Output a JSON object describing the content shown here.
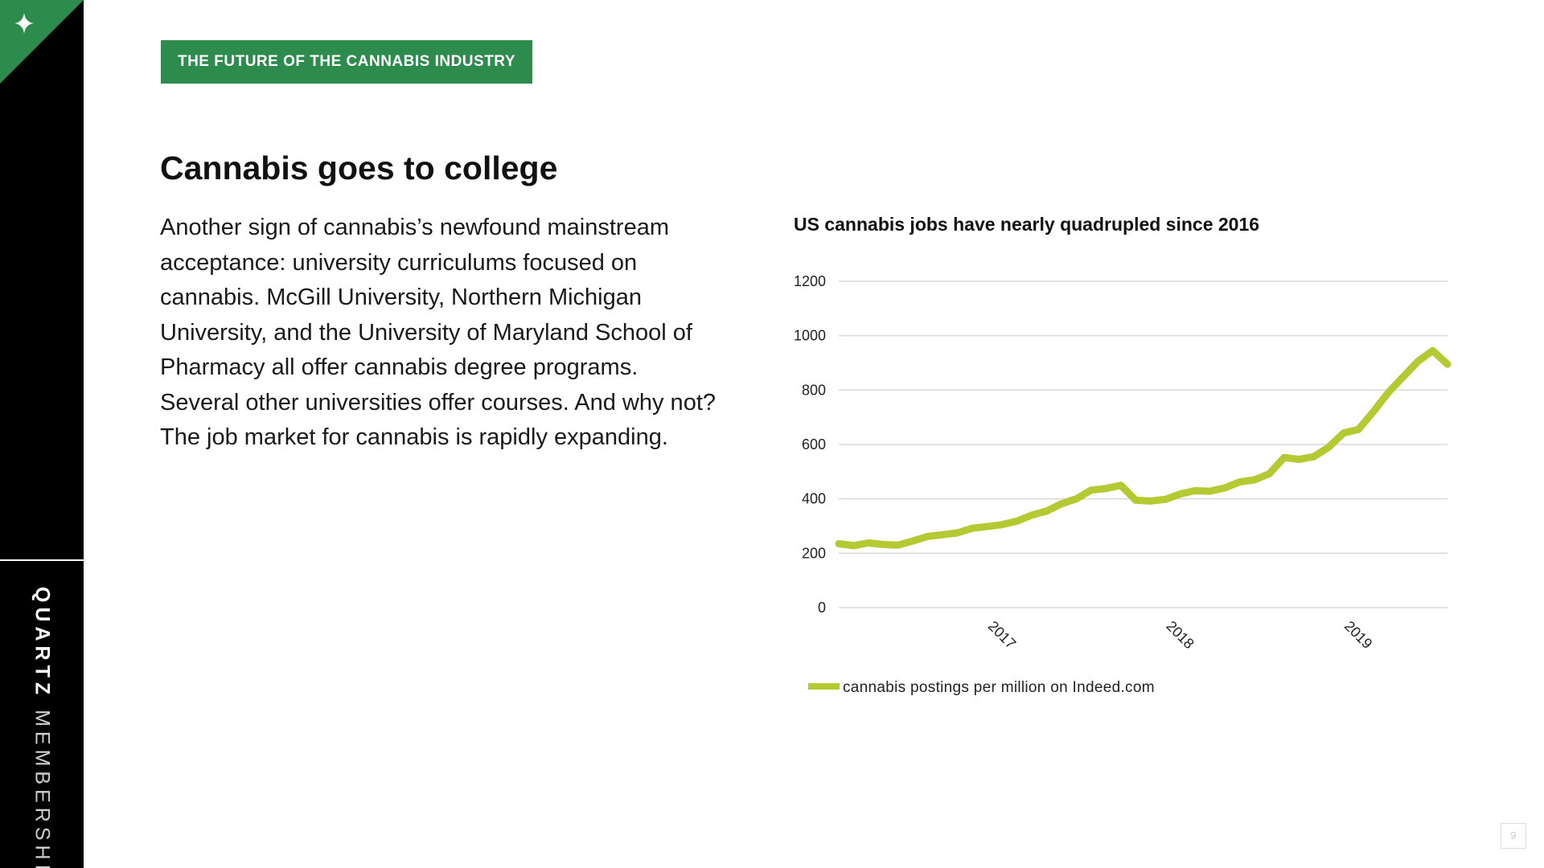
{
  "sidebar": {
    "brand_strong": "QUARTZ",
    "brand_light": "MEMBERSHIP",
    "corner_icon": "sparkle-icon",
    "corner_color": "#2e8b4e"
  },
  "header": {
    "tag": "THE FUTURE OF THE CANNABIS INDUSTRY",
    "tag_color": "#2e8b4e"
  },
  "main": {
    "title": "Cannabis goes to college",
    "body": "Another sign of cannabis’s newfound mainstream acceptance: university curriculums focused on cannabis. McGill University, Northern Michigan University, and the University of Maryland School of Pharmacy all offer cannabis degree programs. Several other universities offer courses. And why not? The job market for cannabis is rapidly expanding."
  },
  "page_number": "9",
  "chart_data": {
    "type": "line",
    "title": "US cannabis jobs have nearly quadrupled since 2016",
    "xlabel": "",
    "ylabel": "",
    "ylim": [
      0,
      1200
    ],
    "yticks": [
      0,
      200,
      400,
      600,
      800,
      1000,
      1200
    ],
    "xlim": [
      "2016-03",
      "2019-06"
    ],
    "xticks": [
      {
        "label": "2017",
        "x": "2017-01"
      },
      {
        "label": "2018",
        "x": "2018-01"
      },
      {
        "label": "2019",
        "x": "2019-01"
      }
    ],
    "grid": true,
    "legend": "bottom-left",
    "series": [
      {
        "name": "cannabis postings per million on Indeed.com",
        "color": "#b5c932",
        "points": [
          [
            "2016-03",
            235
          ],
          [
            "2016-04",
            228
          ],
          [
            "2016-05",
            238
          ],
          [
            "2016-06",
            232
          ],
          [
            "2016-07",
            230
          ],
          [
            "2016-08",
            245
          ],
          [
            "2016-09",
            262
          ],
          [
            "2016-10",
            268
          ],
          [
            "2016-11",
            275
          ],
          [
            "2016-12",
            292
          ],
          [
            "2017-01",
            298
          ],
          [
            "2017-02",
            305
          ],
          [
            "2017-03",
            318
          ],
          [
            "2017-04",
            340
          ],
          [
            "2017-05",
            355
          ],
          [
            "2017-06",
            382
          ],
          [
            "2017-07",
            400
          ],
          [
            "2017-08",
            432
          ],
          [
            "2017-09",
            438
          ],
          [
            "2017-10",
            450
          ],
          [
            "2017-11",
            395
          ],
          [
            "2017-12",
            392
          ],
          [
            "2018-01",
            398
          ],
          [
            "2018-02",
            418
          ],
          [
            "2018-03",
            430
          ],
          [
            "2018-04",
            428
          ],
          [
            "2018-05",
            440
          ],
          [
            "2018-06",
            462
          ],
          [
            "2018-07",
            470
          ],
          [
            "2018-08",
            492
          ],
          [
            "2018-09",
            552
          ],
          [
            "2018-10",
            545
          ],
          [
            "2018-11",
            555
          ],
          [
            "2018-12",
            590
          ],
          [
            "2019-01",
            642
          ],
          [
            "2019-02",
            655
          ],
          [
            "2019-03",
            720
          ],
          [
            "2019-04",
            790
          ],
          [
            "2019-05",
            848
          ],
          [
            "2019-06",
            905
          ],
          [
            "2019-07",
            945
          ],
          [
            "2019-08",
            895
          ]
        ]
      }
    ]
  }
}
